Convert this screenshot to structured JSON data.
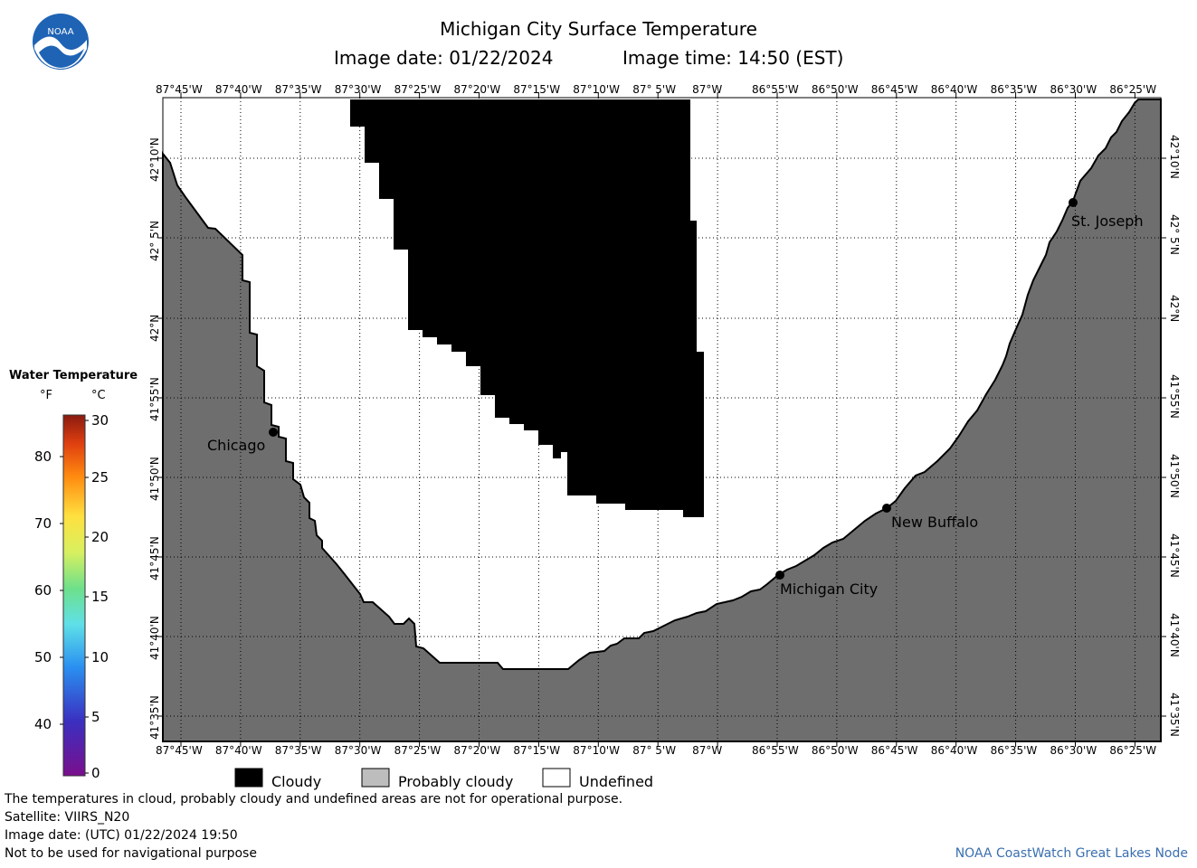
{
  "title": "Michigan City Surface Temperature",
  "image_date_label": "Image date: 01/22/2024",
  "image_time_label": "Image time: 14:50 (EST)",
  "logo_text": "NOAA",
  "lon_ticks": [
    "87°45'W",
    "87°40'W",
    "87°35'W",
    "87°30'W",
    "87°25'W",
    "87°20'W",
    "87°15'W",
    "87°10'W",
    "87° 5'W",
    "87°W",
    "86°55'W",
    "86°50'W",
    "86°45'W",
    "86°40'W",
    "86°35'W",
    "86°30'W",
    "86°25'W"
  ],
  "lat_ticks": [
    "42°10'N",
    "42° 5'N",
    "42°N",
    "41°55'N",
    "41°50'N",
    "41°45'N",
    "41°40'N",
    "41°35'N"
  ],
  "cities": [
    {
      "name": "Chicago"
    },
    {
      "name": "Michigan City"
    },
    {
      "name": "New Buffalo"
    },
    {
      "name": "St. Joseph"
    }
  ],
  "colorbar": {
    "title": "Water Temperature",
    "unit_f": "°F",
    "unit_c": "°C",
    "f_ticks": [
      "80",
      "70",
      "60",
      "50",
      "40"
    ],
    "c_ticks": [
      "30",
      "25",
      "20",
      "15",
      "10",
      "5",
      "0"
    ]
  },
  "legend": {
    "cloudy": "Cloudy",
    "probably_cloudy": "Probably cloudy",
    "undefined": "Undefined"
  },
  "colors": {
    "land": "#6e6e6e",
    "cloud": "#000000",
    "probably_cloudy": "#bdbdbd",
    "credit": "#3a6fb0",
    "logo": "#1f63b4"
  },
  "footer": {
    "note": "The temperatures in cloud, probably cloudy and undefined areas are not for operational purpose.",
    "satellite": "Satellite: VIIRS_N20",
    "utc_date": "Image date: (UTC) 01/22/2024  19:50",
    "nav": "Not to be used for navigational purpose",
    "credit": "NOAA CoastWatch Great Lakes Node"
  }
}
